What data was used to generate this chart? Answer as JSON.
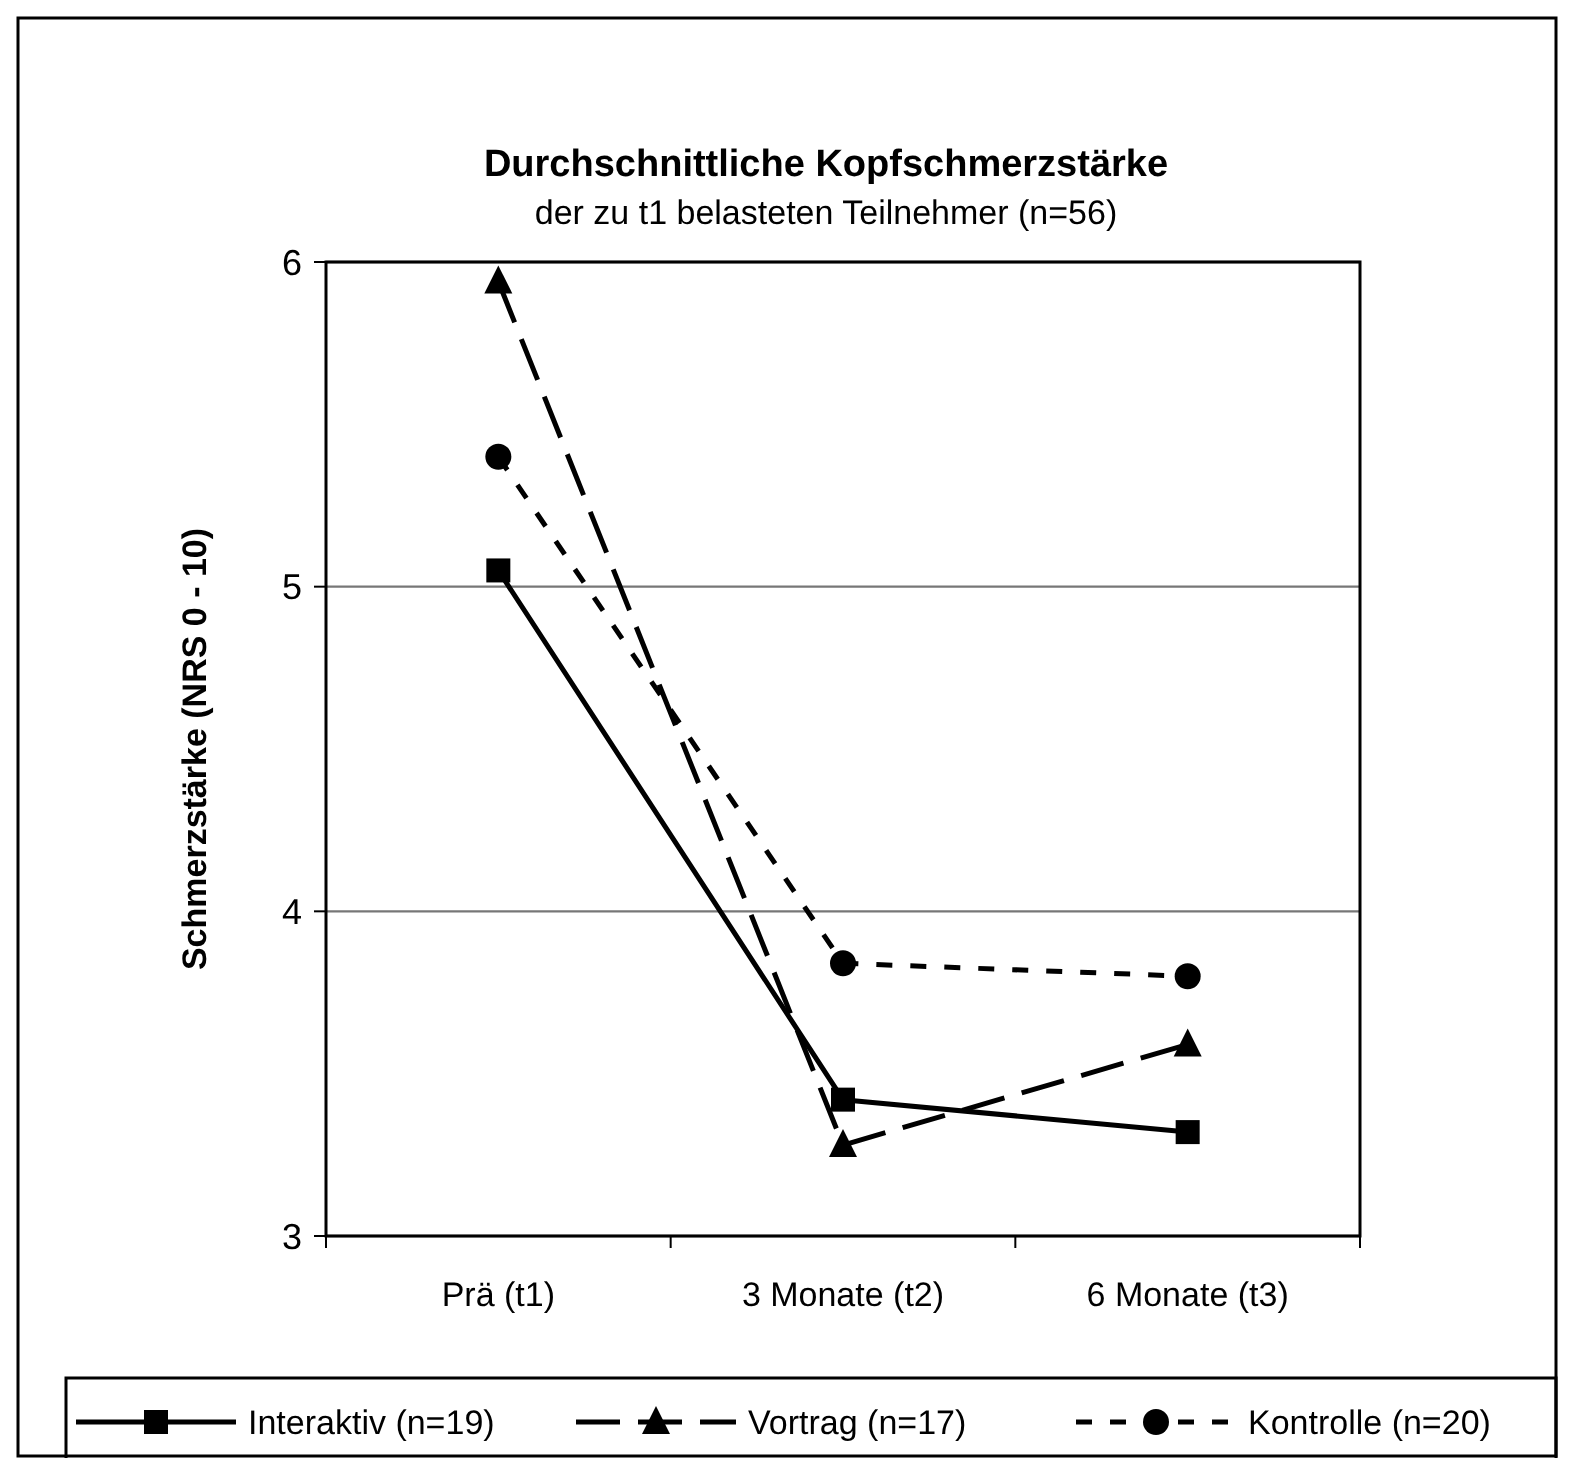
{
  "chart_data": {
    "type": "line",
    "title": "Durchschnittliche Kopfschmerzstärke",
    "subtitle": "der zu t1 belasteten Teilnehmer (n=56)",
    "ylabel": "Schmerzstärke  (NRS 0 - 10)",
    "categories": [
      "Prä (t1)",
      "3 Monate (t2)",
      "6 Monate (t3)"
    ],
    "ylim": [
      3,
      6
    ],
    "yticks": [
      3,
      4,
      5,
      6
    ],
    "grid": "y",
    "legend": "bottom",
    "series": [
      {
        "name": "Interaktiv (n=19)",
        "color": "#000000",
        "marker": "square",
        "line_style": "solid",
        "values": [
          5.05,
          3.42,
          3.32
        ]
      },
      {
        "name": "Vortrag (n=17)",
        "color": "#000000",
        "marker": "triangle",
        "line_style": "dashed",
        "values": [
          5.94,
          3.28,
          3.59
        ]
      },
      {
        "name": "Kontrolle (n=20)",
        "color": "#000000",
        "marker": "circle",
        "line_style": "dotted",
        "values": [
          5.4,
          3.84,
          3.8
        ]
      }
    ]
  }
}
